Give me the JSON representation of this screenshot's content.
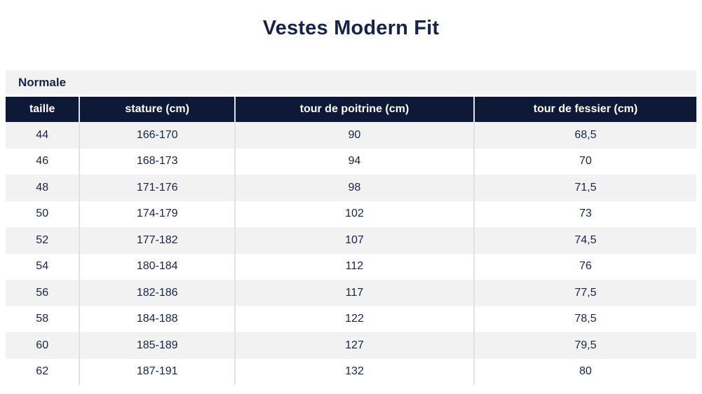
{
  "title": "Vestes Modern Fit",
  "section": {
    "label": "Normale"
  },
  "table": {
    "columns": [
      "taille",
      "stature (cm)",
      "tour de poitrine (cm)",
      "tour de fessier (cm)"
    ],
    "rows": [
      [
        "44",
        "166-170",
        "90",
        "68,5"
      ],
      [
        "46",
        "168-173",
        "94",
        "70"
      ],
      [
        "48",
        "171-176",
        "98",
        "71,5"
      ],
      [
        "50",
        "174-179",
        "102",
        "73"
      ],
      [
        "52",
        "177-182",
        "107",
        "74,5"
      ],
      [
        "54",
        "180-184",
        "112",
        "76"
      ],
      [
        "56",
        "182-186",
        "117",
        "77,5"
      ],
      [
        "58",
        "184-188",
        "122",
        "78,5"
      ],
      [
        "60",
        "185-189",
        "127",
        "79,5"
      ],
      [
        "62",
        "187-191",
        "132",
        "80"
      ]
    ]
  },
  "colors": {
    "header_bg": "#0d1936",
    "text_navy": "#16234a",
    "row_alt_bg": "#f2f2f3",
    "separator": "#e2e2e4"
  },
  "chart_data": {
    "type": "table",
    "title": "Vestes Modern Fit",
    "subtitle": "Normale",
    "columns": [
      "taille",
      "stature (cm)",
      "tour de poitrine (cm)",
      "tour de fessier (cm)"
    ],
    "rows": [
      {
        "taille": 44,
        "stature_cm": "166-170",
        "tour_de_poitrine_cm": 90,
        "tour_de_fessier_cm": 68.5
      },
      {
        "taille": 46,
        "stature_cm": "168-173",
        "tour_de_poitrine_cm": 94,
        "tour_de_fessier_cm": 70
      },
      {
        "taille": 48,
        "stature_cm": "171-176",
        "tour_de_poitrine_cm": 98,
        "tour_de_fessier_cm": 71.5
      },
      {
        "taille": 50,
        "stature_cm": "174-179",
        "tour_de_poitrine_cm": 102,
        "tour_de_fessier_cm": 73
      },
      {
        "taille": 52,
        "stature_cm": "177-182",
        "tour_de_poitrine_cm": 107,
        "tour_de_fessier_cm": 74.5
      },
      {
        "taille": 54,
        "stature_cm": "180-184",
        "tour_de_poitrine_cm": 112,
        "tour_de_fessier_cm": 76
      },
      {
        "taille": 56,
        "stature_cm": "182-186",
        "tour_de_poitrine_cm": 117,
        "tour_de_fessier_cm": 77.5
      },
      {
        "taille": 58,
        "stature_cm": "184-188",
        "tour_de_poitrine_cm": 122,
        "tour_de_fessier_cm": 78.5
      },
      {
        "taille": 60,
        "stature_cm": "185-189",
        "tour_de_poitrine_cm": 127,
        "tour_de_fessier_cm": 79.5
      },
      {
        "taille": 62,
        "stature_cm": "187-191",
        "tour_de_poitrine_cm": 132,
        "tour_de_fessier_cm": 80
      }
    ],
    "layout": {
      "decimal_separator": ",",
      "header_style": "dark-navy",
      "rows_striped": true
    }
  }
}
